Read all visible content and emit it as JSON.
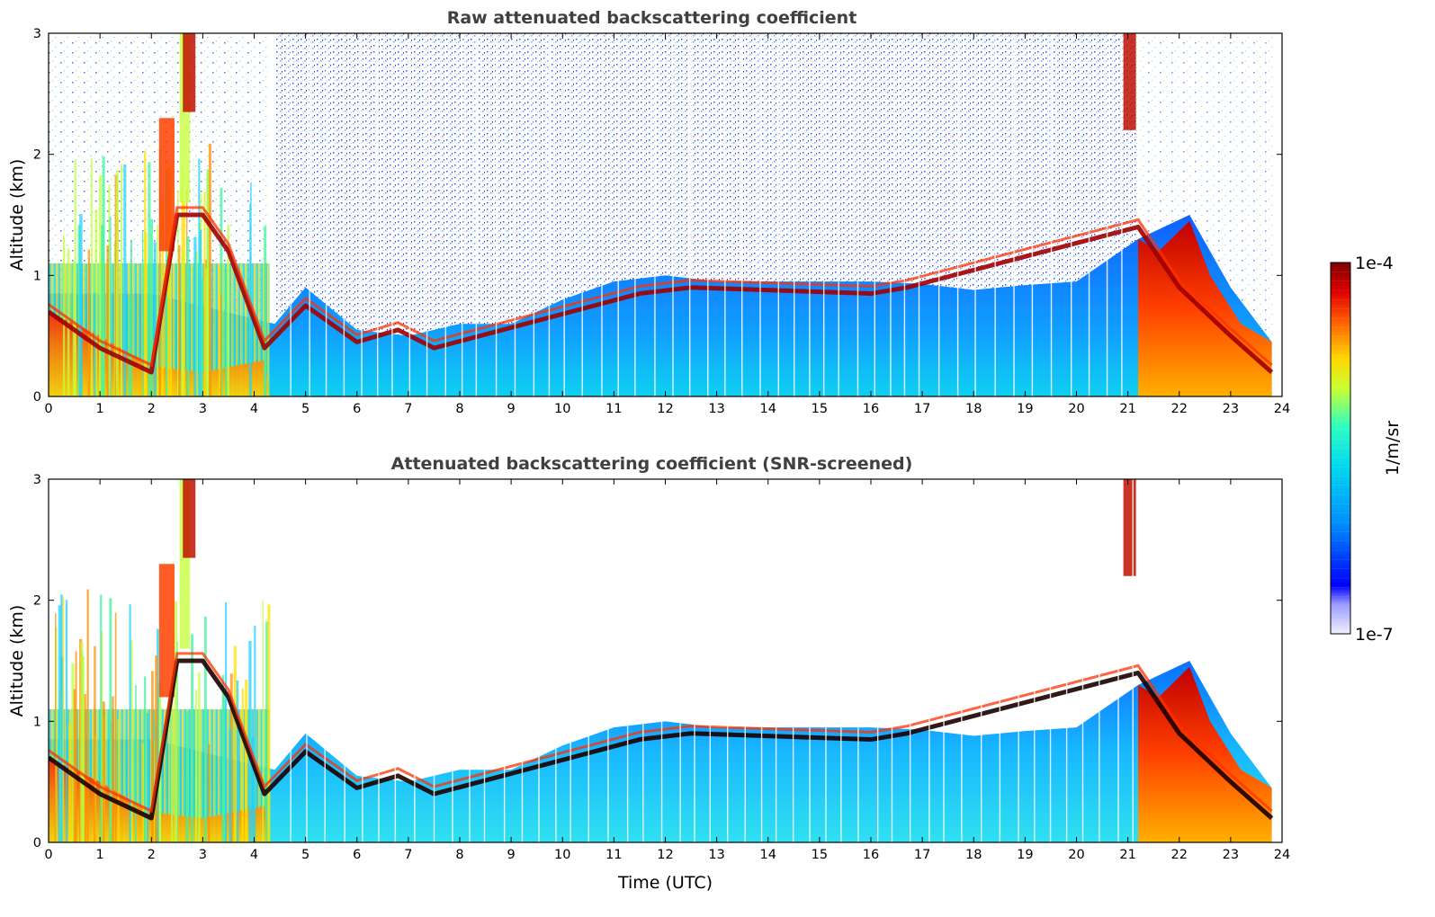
{
  "chart_data": [
    {
      "id": "raw",
      "type": "heatmap",
      "title": "Raw attenuated backscattering coefficient",
      "xlabel": "",
      "ylabel": "Altitude (km)",
      "xlim": [
        0,
        24
      ],
      "ylim": [
        0,
        3
      ],
      "x_ticks": [
        "0",
        "1",
        "2",
        "3",
        "4",
        "5",
        "6",
        "7",
        "8",
        "9",
        "10",
        "11",
        "12",
        "13",
        "14",
        "15",
        "16",
        "17",
        "18",
        "19",
        "20",
        "21",
        "22",
        "23",
        "24"
      ],
      "y_ticks": [
        "0",
        "1",
        "2",
        "3"
      ],
      "snr_screened": false,
      "features": {
        "boundary_layer_top_km": [
          [
            0,
            0.85
          ],
          [
            2,
            0.85
          ],
          [
            4.4,
            0.6
          ],
          [
            5,
            0.9
          ],
          [
            6,
            0.55
          ],
          [
            7,
            0.5
          ],
          [
            8,
            0.6
          ],
          [
            9,
            0.6
          ],
          [
            10,
            0.8
          ],
          [
            11,
            0.95
          ],
          [
            12,
            1.0
          ],
          [
            13,
            0.95
          ],
          [
            14,
            0.95
          ],
          [
            15,
            0.95
          ],
          [
            16,
            0.95
          ],
          [
            17,
            0.93
          ],
          [
            18,
            0.88
          ],
          [
            19,
            0.92
          ],
          [
            20,
            0.95
          ],
          [
            21.2,
            1.3
          ],
          [
            22.2,
            1.5
          ],
          [
            23,
            0.9
          ],
          [
            23.8,
            0.45
          ]
        ],
        "cloud_base_km": [
          [
            0,
            0.7
          ],
          [
            1,
            0.4
          ],
          [
            2,
            0.2
          ],
          [
            2.5,
            1.5
          ],
          [
            3,
            1.5
          ],
          [
            3.5,
            1.2
          ],
          [
            4.2,
            0.4
          ],
          [
            5,
            0.75
          ],
          [
            6,
            0.45
          ],
          [
            6.8,
            0.55
          ],
          [
            7.5,
            0.4
          ],
          [
            11.5,
            0.85
          ],
          [
            12.5,
            0.9
          ],
          [
            16,
            0.85
          ],
          [
            16.7,
            0.9
          ],
          [
            21.2,
            1.4
          ],
          [
            22,
            0.9
          ],
          [
            23,
            0.5
          ],
          [
            23.8,
            0.2
          ]
        ],
        "high_cloud": [
          [
            2.7,
            2.75
          ],
          [
            21,
            2.6
          ]
        ]
      }
    },
    {
      "id": "snr",
      "type": "heatmap",
      "title": "Attenuated backscattering coefficient (SNR-screened)",
      "xlabel": "Time (UTC)",
      "ylabel": "Altitude (km)",
      "xlim": [
        0,
        24
      ],
      "ylim": [
        0,
        3
      ],
      "x_ticks": [
        "0",
        "1",
        "2",
        "3",
        "4",
        "5",
        "6",
        "7",
        "8",
        "9",
        "10",
        "11",
        "12",
        "13",
        "14",
        "15",
        "16",
        "17",
        "18",
        "19",
        "20",
        "21",
        "22",
        "23",
        "24"
      ],
      "y_ticks": [
        "0",
        "1",
        "2",
        "3"
      ],
      "snr_screened": true,
      "features": {
        "boundary_layer_top_km": [
          [
            0,
            0.85
          ],
          [
            2,
            0.85
          ],
          [
            4.4,
            0.6
          ],
          [
            5,
            0.9
          ],
          [
            6,
            0.55
          ],
          [
            7,
            0.5
          ],
          [
            8,
            0.6
          ],
          [
            9,
            0.6
          ],
          [
            10,
            0.8
          ],
          [
            11,
            0.95
          ],
          [
            12,
            1.0
          ],
          [
            13,
            0.95
          ],
          [
            14,
            0.95
          ],
          [
            15,
            0.95
          ],
          [
            16,
            0.95
          ],
          [
            17,
            0.93
          ],
          [
            18,
            0.88
          ],
          [
            19,
            0.92
          ],
          [
            20,
            0.95
          ],
          [
            21.2,
            1.3
          ],
          [
            22.2,
            1.5
          ],
          [
            23,
            0.9
          ],
          [
            23.8,
            0.45
          ]
        ],
        "cloud_base_km": [
          [
            0,
            0.7
          ],
          [
            1,
            0.4
          ],
          [
            2,
            0.2
          ],
          [
            2.5,
            1.5
          ],
          [
            3,
            1.5
          ],
          [
            3.5,
            1.2
          ],
          [
            4.2,
            0.4
          ],
          [
            5,
            0.75
          ],
          [
            6,
            0.45
          ],
          [
            6.8,
            0.55
          ],
          [
            7.5,
            0.4
          ],
          [
            11.5,
            0.85
          ],
          [
            12.5,
            0.9
          ],
          [
            16,
            0.85
          ],
          [
            16.7,
            0.9
          ],
          [
            21.2,
            1.4
          ],
          [
            22,
            0.9
          ],
          [
            23,
            0.5
          ],
          [
            23.8,
            0.2
          ]
        ],
        "high_cloud": [
          [
            2.7,
            2.75
          ],
          [
            21,
            2.6
          ]
        ]
      }
    }
  ],
  "colorbar": {
    "label": "1/m/sr",
    "max_label": "1e-4",
    "min_label": "1e-7",
    "scale": "log",
    "colormap": [
      "#ffffff",
      "#0000ff",
      "#00bfff",
      "#00ffbf",
      "#ffff00",
      "#ff8000",
      "#ff0000",
      "#800000"
    ]
  }
}
